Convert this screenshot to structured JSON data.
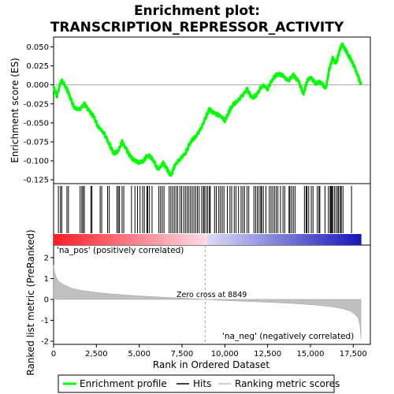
{
  "title_line1": "Enrichment plot:",
  "title_line2": "TRANSCRIPTION_REPRESSOR_ACTIVITY",
  "colors": {
    "enrichment_line": "#00ff00",
    "hits": "#000000",
    "metric_fill": "#c0c0c0",
    "zero_cross_line": "#a0a0a0",
    "pos_label": "#cc0000",
    "neg_label": "#0000cc"
  },
  "labels": {
    "na_pos": "'na_pos' (positively correlated)",
    "na_neg": "'na_neg' (negatively correlated)",
    "zero_cross": "Zero cross at 8849"
  },
  "legend": {
    "items": [
      {
        "label": "Enrichment profile",
        "color": "#00ff00",
        "style": "line"
      },
      {
        "label": "Hits",
        "color": "#000000",
        "style": "line"
      },
      {
        "label": "Ranking metric scores",
        "color": "#c0c0c0",
        "style": "line"
      }
    ]
  },
  "chart_data": [
    {
      "type": "line",
      "panel": "enrichment",
      "ylabel": "Enrichment score (ES)",
      "xlim": [
        0,
        18500
      ],
      "ylim": [
        -0.13,
        0.063
      ],
      "yticks": [
        0.05,
        0.025,
        0.0,
        -0.025,
        -0.05,
        -0.075,
        -0.1,
        -0.125
      ],
      "ytick_labels": [
        "0.050",
        "0.025",
        "0.000",
        "-0.025",
        "-0.050",
        "-0.075",
        "-0.100",
        "-0.125"
      ],
      "grid": false,
      "series": [
        {
          "x": [
            0,
            200,
            450,
            700,
            950,
            1200,
            1500,
            1800,
            2100,
            2350,
            2600,
            2900,
            3200,
            3500,
            3750,
            4000,
            4250,
            4500,
            4750,
            5000,
            5250,
            5500,
            5800,
            6100,
            6400,
            6600,
            6850,
            7100,
            7400,
            7700,
            8000,
            8300,
            8600,
            8849,
            9100,
            9400,
            9700,
            10000,
            10200,
            10400,
            10700,
            11000,
            11300,
            11600,
            11900,
            12200,
            12500,
            12800,
            13100,
            13400,
            13700,
            14000,
            14300,
            14600,
            14800,
            15000,
            15300,
            15600,
            15900,
            16100,
            16300,
            16500,
            16700,
            16850,
            17000,
            17200,
            17400,
            17600,
            17800,
            17950
          ],
          "y": [
            -0.003,
            -0.015,
            0.007,
            -0.002,
            -0.015,
            -0.03,
            -0.033,
            -0.025,
            -0.035,
            -0.042,
            -0.055,
            -0.062,
            -0.075,
            -0.09,
            -0.088,
            -0.075,
            -0.085,
            -0.095,
            -0.1,
            -0.102,
            -0.1,
            -0.092,
            -0.098,
            -0.112,
            -0.103,
            -0.11,
            -0.12,
            -0.105,
            -0.097,
            -0.09,
            -0.075,
            -0.068,
            -0.058,
            -0.045,
            -0.032,
            -0.038,
            -0.04,
            -0.047,
            -0.038,
            -0.028,
            -0.022,
            -0.015,
            -0.006,
            -0.018,
            -0.012,
            0.0,
            -0.005,
            0.008,
            0.015,
            0.012,
            0.005,
            0.013,
            0.005,
            -0.012,
            0.005,
            0.01,
            0.002,
            0.004,
            -0.005,
            0.02,
            0.035,
            0.028,
            0.045,
            0.054,
            0.048,
            0.04,
            0.032,
            0.022,
            0.01,
            0.0
          ]
        }
      ]
    },
    {
      "type": "bar",
      "panel": "hits",
      "xlim": [
        0,
        18500
      ],
      "hit_ranks": [
        280,
        400,
        480,
        780,
        870,
        1550,
        1650,
        1720,
        1800,
        2180,
        2240,
        2720,
        2810,
        3150,
        3250,
        3700,
        3780,
        3850,
        4000,
        4100,
        4550,
        4750,
        4900,
        5050,
        5200,
        5300,
        5450,
        5500,
        5600,
        5750,
        6150,
        6250,
        6350,
        6450,
        6750,
        6850,
        6950,
        7050,
        7150,
        7250,
        7380,
        7480,
        7600,
        7700,
        7800,
        7900,
        8000,
        8100,
        8200,
        8300,
        8400,
        8500,
        8650,
        8750,
        8800,
        8900,
        9000,
        9100,
        9150,
        9400,
        9500,
        9650,
        9750,
        9850,
        9950,
        10150,
        10300,
        10400,
        10550,
        10650,
        10800,
        10950,
        11050,
        11150,
        11300,
        11400,
        11700,
        11800,
        11900,
        12000,
        12100,
        12150,
        12250,
        12400,
        12600,
        12700,
        12800,
        12900,
        13000,
        13100,
        13250,
        13400,
        13500,
        13750,
        13800,
        13900,
        14000,
        14100,
        14650,
        14750,
        14800,
        14900,
        15050,
        15150,
        15400,
        15500,
        15550,
        15850,
        16050,
        16150,
        16200,
        16250,
        16300,
        16400,
        16500,
        16600,
        16650,
        16750,
        16800,
        16900,
        17400
      ]
    },
    {
      "type": "area",
      "panel": "ranked_list_metric",
      "xlabel": "Rank in Ordered Dataset",
      "ylabel": "Ranked list metric (PreRanked)",
      "xlim": [
        0,
        18500
      ],
      "ylim": [
        -2.15,
        2.6
      ],
      "xticks": [
        0,
        2500,
        5000,
        7500,
        10000,
        12500,
        15000,
        17500
      ],
      "xtick_labels": [
        "0",
        "2,500",
        "5,000",
        "7,500",
        "10,000",
        "12,500",
        "15,000",
        "17,500"
      ],
      "yticks": [
        2,
        1,
        0,
        -1,
        -2
      ],
      "ytick_labels": [
        "2",
        "1",
        "0",
        "-1",
        "-2"
      ],
      "zero_cross": 8849,
      "series": [
        {
          "x": [
            0,
            50,
            150,
            300,
            600,
            1000,
            1500,
            2500,
            3500,
            5000,
            6500,
            8000,
            8849,
            10000,
            11500,
            13000,
            14500,
            15500,
            16300,
            16900,
            17300,
            17600,
            17800,
            17900,
            17950
          ],
          "y": [
            1.65,
            1.3,
            1.05,
            0.85,
            0.7,
            0.55,
            0.45,
            0.33,
            0.25,
            0.17,
            0.1,
            0.04,
            0.0,
            -0.05,
            -0.1,
            -0.15,
            -0.22,
            -0.28,
            -0.36,
            -0.45,
            -0.55,
            -0.7,
            -0.9,
            -1.3,
            -1.9
          ]
        }
      ]
    }
  ]
}
